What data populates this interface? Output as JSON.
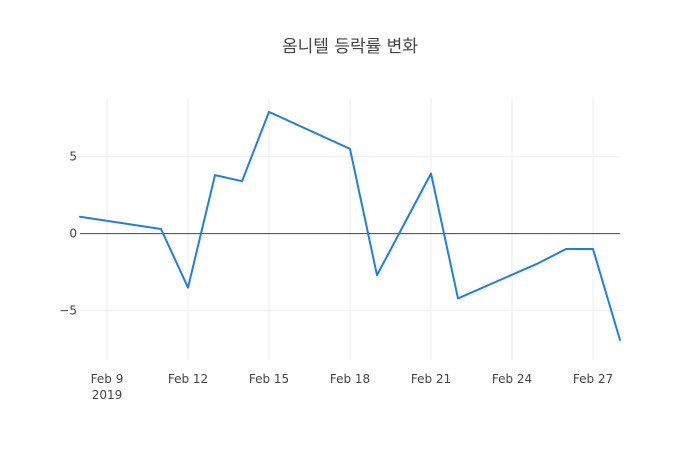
{
  "chart_data": {
    "type": "line",
    "title": "옴니텔 등락률 변화",
    "xlabel": "",
    "ylabel": "",
    "x_tick_labels": [
      "Feb 9",
      "Feb 12",
      "Feb 15",
      "Feb 18",
      "Feb 21",
      "Feb 24",
      "Feb 27"
    ],
    "x_tick_dates": [
      "2019-02-09",
      "2019-02-12",
      "2019-02-15",
      "2019-02-18",
      "2019-02-21",
      "2019-02-24",
      "2019-02-27"
    ],
    "x_year_label": "2019",
    "y_ticks": [
      -5,
      0,
      5
    ],
    "y_tick_labels": [
      "−5",
      "0",
      "5"
    ],
    "xlim": [
      "2019-02-08",
      "2019-02-28"
    ],
    "ylim": [
      -8.2,
      8.8
    ],
    "grid": true,
    "zero_line": true,
    "line_color": "#1f7fe0",
    "series": [
      {
        "x": [
          "2019-02-08",
          "2019-02-11",
          "2019-02-12",
          "2019-02-13",
          "2019-02-14",
          "2019-02-15",
          "2019-02-18",
          "2019-02-19",
          "2019-02-20",
          "2019-02-21",
          "2019-02-22",
          "2019-02-25",
          "2019-02-26",
          "2019-02-27",
          "2019-02-28"
        ],
        "y": [
          1.1,
          0.3,
          -3.5,
          3.8,
          3.4,
          7.9,
          5.5,
          -2.7,
          0.6,
          3.9,
          -4.2,
          -1.9,
          -1.0,
          -1.0,
          -6.9
        ]
      }
    ]
  }
}
